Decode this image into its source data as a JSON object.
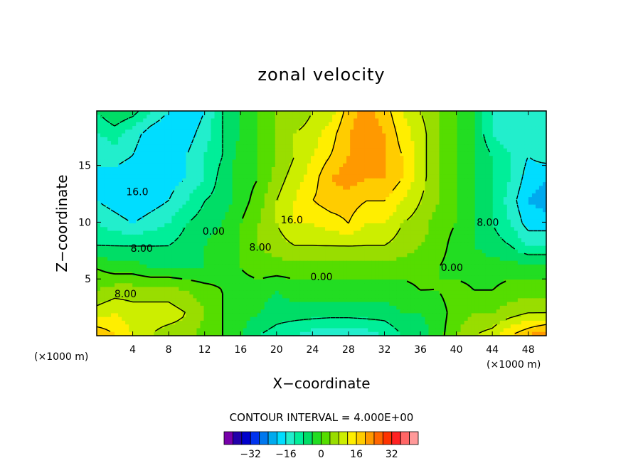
{
  "chart_data": {
    "type": "heatmap",
    "title": "zonal velocity",
    "xlabel": "X−coordinate",
    "ylabel": "Z−coordinate",
    "x_unit": "(×1000 m)",
    "y_unit": "(×1000 m)",
    "xlim": [
      0,
      50
    ],
    "ylim": [
      0,
      19.8
    ],
    "x_ticks": [
      "4",
      "8",
      "12",
      "16",
      "20",
      "24",
      "28",
      "32",
      "36",
      "40",
      "44",
      "48"
    ],
    "y_ticks": [
      "5",
      "10",
      "15"
    ],
    "contour_interval": "CONTOUR INTERVAL = 4.000E+00",
    "contour_labels": [
      {
        "text": "16.0",
        "x": 4.5,
        "z": 12.7
      },
      {
        "text": "16.0",
        "x": 21.7,
        "z": 10.2
      },
      {
        "text": "0.00",
        "x": 13.0,
        "z": 9.2
      },
      {
        "text": "8.00",
        "x": 5.0,
        "z": 7.7
      },
      {
        "text": "8.00",
        "x": 18.2,
        "z": 7.8
      },
      {
        "text": "0.00",
        "x": 25.0,
        "z": 5.2
      },
      {
        "text": "0.00",
        "x": 39.5,
        "z": 6.0
      },
      {
        "text": "8.00",
        "x": 43.5,
        "z": 10.0
      },
      {
        "text": "8.00",
        "x": 3.2,
        "z": 3.7
      }
    ],
    "colorbar": {
      "colors": [
        "#7700aa",
        "#2200aa",
        "#0000cc",
        "#0033ee",
        "#0077ee",
        "#00aaee",
        "#00ddff",
        "#22eecc",
        "#00ee99",
        "#00dd66",
        "#22dd22",
        "#55dd00",
        "#99dd00",
        "#ccee00",
        "#ffee00",
        "#ffcc00",
        "#ff9900",
        "#ff6600",
        "#ff3300",
        "#ff2222",
        "#ff6666",
        "#ff9999"
      ],
      "ticks": [
        "−32",
        "−16",
        "0",
        "16",
        "32"
      ],
      "tick_values": [
        -32,
        -16,
        0,
        16,
        32
      ],
      "min": -44,
      "max": 44
    },
    "grid": [
      [
        -8,
        -4,
        -6,
        -12,
        -16,
        -20,
        -16,
        -8,
        -4,
        0,
        4,
        4,
        8,
        10,
        18,
        22,
        18,
        12,
        8,
        4,
        0,
        -4,
        -12,
        -16,
        -16,
        -12
      ],
      [
        -12,
        -10,
        -14,
        -18,
        -20,
        -18,
        -14,
        -8,
        -4,
        0,
        4,
        8,
        10,
        14,
        20,
        22,
        20,
        14,
        10,
        4,
        0,
        -4,
        -12,
        -16,
        -16,
        -12
      ],
      [
        -16,
        -14,
        -16,
        -20,
        -20,
        -16,
        -12,
        -8,
        -2,
        0,
        4,
        8,
        12,
        16,
        20,
        22,
        20,
        16,
        10,
        4,
        0,
        -4,
        -8,
        -12,
        -16,
        -14
      ],
      [
        -16,
        -18,
        -20,
        -20,
        -18,
        -16,
        -12,
        -6,
        -2,
        0,
        6,
        10,
        14,
        20,
        22,
        20,
        20,
        16,
        10,
        4,
        0,
        -4,
        -8,
        -12,
        -18,
        -20
      ],
      [
        -16,
        -18,
        -20,
        -18,
        -16,
        -12,
        -8,
        -6,
        -2,
        2,
        8,
        12,
        16,
        18,
        18,
        16,
        16,
        12,
        8,
        4,
        0,
        -4,
        -8,
        -14,
        -20,
        -22
      ],
      [
        -12,
        -14,
        -16,
        -14,
        -12,
        -8,
        -6,
        -4,
        0,
        4,
        8,
        12,
        12,
        14,
        16,
        12,
        12,
        8,
        6,
        2,
        0,
        -4,
        -8,
        -12,
        -18,
        -18
      ],
      [
        -8,
        -8,
        -8,
        -8,
        -8,
        -6,
        -4,
        -2,
        0,
        4,
        6,
        8,
        8,
        8,
        8,
        8,
        8,
        6,
        4,
        2,
        -2,
        -4,
        -6,
        -8,
        -12,
        -12
      ],
      [
        0,
        -2,
        -2,
        -4,
        -4,
        -4,
        -4,
        -2,
        0,
        2,
        2,
        2,
        2,
        2,
        2,
        2,
        2,
        2,
        2,
        0,
        -2,
        -2,
        -2,
        -2,
        -2,
        -2
      ],
      [
        4,
        6,
        6,
        6,
        6,
        4,
        2,
        0,
        -2,
        -2,
        -4,
        -2,
        -2,
        -2,
        -2,
        -2,
        -2,
        -2,
        0,
        0,
        2,
        0,
        0,
        2,
        2,
        2
      ],
      [
        10,
        12,
        10,
        10,
        10,
        8,
        4,
        0,
        -2,
        -4,
        -6,
        -6,
        -6,
        -6,
        -6,
        -6,
        -6,
        -4,
        -4,
        -2,
        2,
        4,
        4,
        6,
        8,
        8
      ],
      [
        20,
        16,
        12,
        8,
        6,
        6,
        2,
        0,
        -4,
        -8,
        -10,
        -12,
        -14,
        -16,
        -16,
        -14,
        -12,
        -8,
        -6,
        -2,
        4,
        8,
        10,
        16,
        20,
        24
      ]
    ]
  }
}
